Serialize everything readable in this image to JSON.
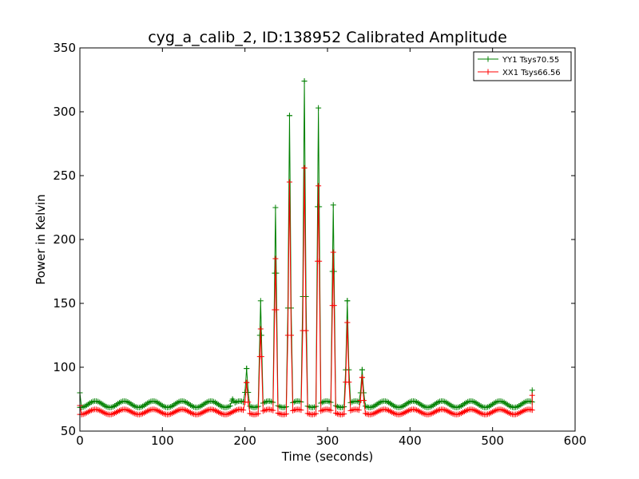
{
  "chart_data": {
    "type": "line",
    "title": "cyg_a_calib_2, ID:138952 Calibrated Amplitude",
    "xlabel": "Time (seconds)",
    "ylabel": "Power in Kelvin",
    "xlim": [
      0,
      600
    ],
    "ylim": [
      50,
      350
    ],
    "xticks": [
      0,
      100,
      200,
      300,
      400,
      500,
      600
    ],
    "yticks": [
      50,
      100,
      150,
      200,
      250,
      300,
      350
    ],
    "legend_position": "top-right",
    "grid": false,
    "series": [
      {
        "name": "YY1 Tsys70.55",
        "color": "#008000",
        "marker": "+",
        "baseline": 71,
        "ripple": 2.5,
        "ripple_period": 35,
        "start": [
          0,
          80
        ],
        "end": [
          548,
          82
        ],
        "x_max": 548,
        "peaks": [
          {
            "x": 185,
            "y": 75
          },
          {
            "x": 202,
            "y": 99
          },
          {
            "x": 219,
            "y": 152
          },
          {
            "x": 237,
            "y": 225
          },
          {
            "x": 254,
            "y": 297
          },
          {
            "x": 272,
            "y": 324
          },
          {
            "x": 289,
            "y": 303
          },
          {
            "x": 307,
            "y": 227
          },
          {
            "x": 324,
            "y": 152
          },
          {
            "x": 342,
            "y": 98
          }
        ]
      },
      {
        "name": "XX1 Tsys66.56",
        "color": "#ff0000",
        "marker": "+",
        "baseline": 65,
        "ripple": 2,
        "ripple_period": 35,
        "start": [
          0,
          70
        ],
        "end": [
          548,
          78
        ],
        "x_max": 548,
        "peaks": [
          {
            "x": 202,
            "y": 88
          },
          {
            "x": 219,
            "y": 130
          },
          {
            "x": 237,
            "y": 185
          },
          {
            "x": 254,
            "y": 245
          },
          {
            "x": 272,
            "y": 256
          },
          {
            "x": 289,
            "y": 242
          },
          {
            "x": 307,
            "y": 190
          },
          {
            "x": 324,
            "y": 135
          },
          {
            "x": 342,
            "y": 92
          }
        ]
      }
    ]
  }
}
